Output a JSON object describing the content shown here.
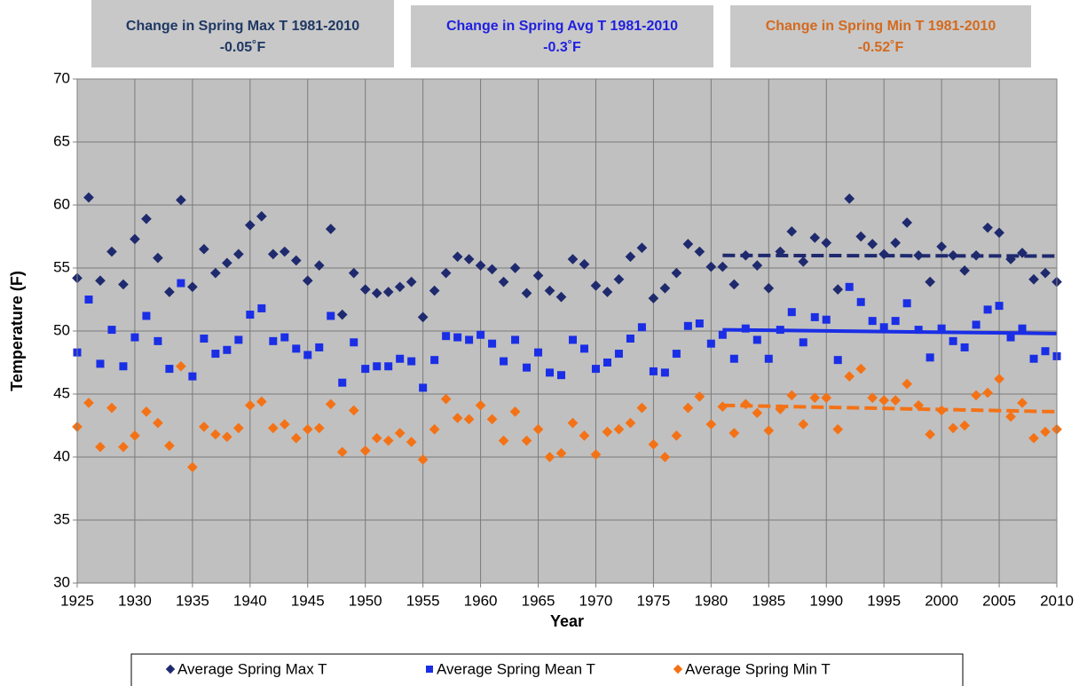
{
  "chart_data": {
    "type": "scatter",
    "x_label": "Year",
    "y_label": "Temperature (F)",
    "xlim": [
      1925,
      2010
    ],
    "xticks": [
      1925,
      1930,
      1935,
      1940,
      1945,
      1950,
      1955,
      1960,
      1965,
      1970,
      1975,
      1980,
      1985,
      1990,
      1995,
      2000,
      2005,
      2010
    ],
    "ylim": [
      30,
      70
    ],
    "yticks": [
      30,
      35,
      40,
      45,
      50,
      55,
      60,
      65,
      70
    ],
    "grid": true,
    "legend": "bottom",
    "annotations": [
      {
        "text": "Change in Spring Max T 1981-2010",
        "value_label": "-0.05˚F",
        "color": "#1f3864"
      },
      {
        "text": "Change in Spring Avg T 1981-2010",
        "value_label": "-0.3˚F",
        "color": "#1f1fe0"
      },
      {
        "text": "Change in Spring Min T 1981-2010",
        "value_label": "-0.52˚F",
        "color": "#d46a1e"
      }
    ],
    "x": [
      1925,
      1926,
      1927,
      1928,
      1929,
      1930,
      1931,
      1932,
      1933,
      1934,
      1935,
      1936,
      1937,
      1938,
      1939,
      1940,
      1941,
      1942,
      1943,
      1944,
      1945,
      1946,
      1947,
      1948,
      1949,
      1950,
      1951,
      1952,
      1953,
      1954,
      1955,
      1956,
      1957,
      1958,
      1959,
      1960,
      1961,
      1962,
      1963,
      1964,
      1965,
      1966,
      1967,
      1968,
      1969,
      1970,
      1971,
      1972,
      1973,
      1974,
      1975,
      1976,
      1977,
      1978,
      1979,
      1980,
      1981,
      1982,
      1983,
      1984,
      1985,
      1986,
      1987,
      1988,
      1989,
      1990,
      1991,
      1992,
      1993,
      1994,
      1995,
      1996,
      1997,
      1998,
      1999,
      2000,
      2001,
      2002,
      2003,
      2004,
      2005,
      2006,
      2007,
      2008,
      2009,
      2010
    ],
    "series": [
      {
        "name": "Average Spring Max T",
        "color": "#1f2a6e",
        "marker": "diamond",
        "values": [
          54.2,
          60.6,
          54.0,
          56.3,
          53.7,
          57.3,
          58.9,
          55.8,
          53.1,
          60.4,
          53.5,
          56.5,
          54.6,
          55.4,
          56.1,
          58.4,
          59.1,
          56.1,
          56.3,
          55.6,
          54.0,
          55.2,
          58.1,
          51.3,
          54.6,
          53.3,
          53.0,
          53.1,
          53.5,
          53.9,
          51.1,
          53.2,
          54.6,
          55.9,
          55.7,
          55.2,
          54.9,
          53.9,
          55.0,
          53.0,
          54.4,
          53.2,
          52.7,
          55.7,
          55.3,
          53.6,
          53.1,
          54.1,
          55.9,
          56.6,
          52.6,
          53.4,
          54.6,
          56.9,
          56.3,
          55.1,
          55.1,
          53.7,
          56.0,
          55.2,
          53.4,
          56.3,
          57.9,
          55.5,
          57.4,
          57.0,
          53.3,
          60.5,
          57.5,
          56.9,
          56.1,
          57.0,
          58.6,
          56.0,
          53.9,
          56.7,
          56.0,
          54.8,
          56.0,
          58.2,
          57.8,
          55.7,
          56.2,
          54.1,
          54.6,
          53.9
        ],
        "trend": {
          "x": [
            1981,
            2010
          ],
          "values": [
            56.0,
            55.95
          ],
          "dashed": true
        }
      },
      {
        "name": "Average Spring Mean T",
        "color": "#1a2ee6",
        "marker": "square",
        "values": [
          48.3,
          52.5,
          47.4,
          50.1,
          47.2,
          49.5,
          51.2,
          49.2,
          47.0,
          53.8,
          46.4,
          49.4,
          48.2,
          48.5,
          49.3,
          51.3,
          51.8,
          49.2,
          49.5,
          48.6,
          48.1,
          48.7,
          51.2,
          45.9,
          49.1,
          47.0,
          47.2,
          47.2,
          47.8,
          47.6,
          45.5,
          47.7,
          49.6,
          49.5,
          49.3,
          49.7,
          49.0,
          47.6,
          49.3,
          47.1,
          48.3,
          46.7,
          46.5,
          49.3,
          48.6,
          47.0,
          47.5,
          48.2,
          49.4,
          50.3,
          46.8,
          46.7,
          48.2,
          50.4,
          50.6,
          49.0,
          49.7,
          47.8,
          50.2,
          49.3,
          47.8,
          50.1,
          51.5,
          49.1,
          51.1,
          50.9,
          47.7,
          53.5,
          52.3,
          50.8,
          50.3,
          50.8,
          52.2,
          50.1,
          47.9,
          50.2,
          49.2,
          48.7,
          50.5,
          51.7,
          52.0,
          49.5,
          50.2,
          47.8,
          48.4,
          48.0
        ],
        "trend": {
          "x": [
            1981,
            2010
          ],
          "values": [
            50.1,
            49.8
          ],
          "dashed": false
        }
      },
      {
        "name": "Average Spring Min T",
        "color": "#f47216",
        "marker": "diamond",
        "values": [
          42.4,
          44.3,
          40.8,
          43.9,
          40.8,
          41.7,
          43.6,
          42.7,
          40.9,
          47.2,
          39.2,
          42.4,
          41.8,
          41.6,
          42.3,
          44.1,
          44.4,
          42.3,
          42.6,
          41.5,
          42.2,
          42.3,
          44.2,
          40.4,
          43.7,
          40.5,
          41.5,
          41.3,
          41.9,
          41.2,
          39.8,
          42.2,
          44.6,
          43.1,
          43.0,
          44.1,
          43.0,
          41.3,
          43.6,
          41.3,
          42.2,
          40.0,
          40.3,
          42.7,
          41.7,
          40.2,
          42.0,
          42.2,
          42.7,
          43.9,
          41.0,
          40.0,
          41.7,
          43.9,
          44.8,
          42.6,
          44.0,
          41.9,
          44.2,
          43.5,
          42.1,
          43.8,
          44.9,
          42.6,
          44.7,
          44.7,
          42.2,
          46.4,
          47.0,
          44.7,
          44.5,
          44.5,
          45.8,
          44.1,
          41.8,
          43.7,
          42.3,
          42.5,
          44.9,
          45.1,
          46.2,
          43.2,
          44.3,
          41.5,
          42.0,
          42.2
        ],
        "trend": {
          "x": [
            1981,
            2010
          ],
          "values": [
            44.1,
            43.6
          ],
          "dashed": true
        }
      }
    ]
  }
}
